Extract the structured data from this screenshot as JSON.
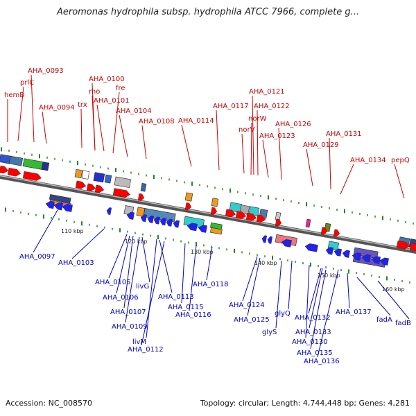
{
  "title": "Aeromonas hydrophila subsp. hydrophila ATCC 7966, complete g...",
  "footer": {
    "accession": "Accession: NC_008570",
    "topology": "Topology: circular; Length: 4,744,448 bp; Genes: 4,281"
  },
  "colors": {
    "forward_label": "#cc0000",
    "reverse_label": "#0000cc",
    "backbone": "#777777",
    "tick": "#228822"
  },
  "scale_labels": [
    "110 kbp",
    "120 kbp",
    "130 kbp",
    "140 kbp",
    "150 kbp",
    "160 kbp"
  ],
  "forward_genes": [
    "hemB",
    "prlC",
    "AHA_0093",
    "AHA_0094",
    "trx",
    "rho",
    "AHA_0100",
    "AHA_0101",
    "fre",
    "AHA_0104",
    "AHA_0108",
    "AHA_0114",
    "AHA_0117",
    "norV",
    "norW",
    "AHA_0121",
    "AHA_0122",
    "AHA_0123",
    "AHA_0126",
    "AHA_0129",
    "AHA_0131",
    "AHA_0134",
    "pepQ"
  ],
  "reverse_genes": [
    "AHA_0097",
    "AHA_0103",
    "AHA_0105",
    "AHA_0106",
    "livG",
    "AHA_0107",
    "AHA_0109",
    "livM",
    "AHA_0112",
    "AHA_0113",
    "AHA_0115",
    "AHA_0116",
    "AHA_0118",
    "AHA_0124",
    "AHA_0125",
    "glyS",
    "glyQ",
    "AHA_0130",
    "AHA_0132",
    "AHA_0133",
    "AHA_0135",
    "AHA_0136",
    "AHA_0137",
    "fadA",
    "fadB"
  ]
}
